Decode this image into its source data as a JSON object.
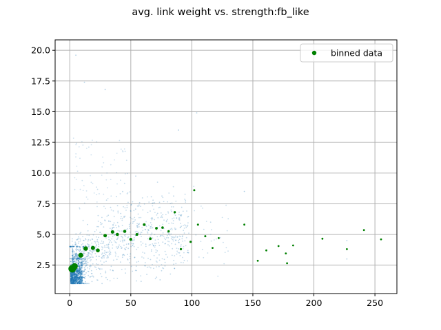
{
  "chart_data": {
    "type": "scatter",
    "title": "avg. link weight vs. strength:fb_like",
    "xlabel": "",
    "ylabel": "",
    "xlim": [
      -12,
      268
    ],
    "ylim": [
      0.18,
      20.85
    ],
    "x_ticks": [
      0,
      50,
      100,
      150,
      200,
      250
    ],
    "y_ticks": [
      2.5,
      5.0,
      7.5,
      10.0,
      12.5,
      15.0,
      17.5,
      20.0
    ],
    "x_tick_labels": [
      "0",
      "50",
      "100",
      "150",
      "200",
      "250"
    ],
    "y_tick_labels": [
      "2.5",
      "5.0",
      "7.5",
      "10.0",
      "12.5",
      "15.0",
      "17.5",
      "20.0"
    ],
    "grid": true,
    "legend": {
      "position": "top-right",
      "entries": [
        "binned data"
      ]
    },
    "colors": {
      "raw": "#1f77b4",
      "binned": "#008000",
      "grid": "#b0b0b0"
    },
    "series": [
      {
        "name": "binned data",
        "style": "markers",
        "points": [
          {
            "x": 2,
            "y": 2.2,
            "size": 5.5
          },
          {
            "x": 4,
            "y": 2.4,
            "size": 4.6
          },
          {
            "x": 9,
            "y": 3.3,
            "size": 3.6
          },
          {
            "x": 13,
            "y": 3.85,
            "size": 3.3
          },
          {
            "x": 19,
            "y": 3.9,
            "size": 3.0
          },
          {
            "x": 23,
            "y": 3.7,
            "size": 2.8
          },
          {
            "x": 29,
            "y": 4.9,
            "size": 2.5
          },
          {
            "x": 35,
            "y": 5.2,
            "size": 2.5
          },
          {
            "x": 39,
            "y": 5.0,
            "size": 2.3
          },
          {
            "x": 45,
            "y": 5.25,
            "size": 2.3
          },
          {
            "x": 50,
            "y": 4.6,
            "size": 2.1
          },
          {
            "x": 55,
            "y": 5.0,
            "size": 2.0
          },
          {
            "x": 61,
            "y": 5.8,
            "size": 2.0
          },
          {
            "x": 66,
            "y": 4.65,
            "size": 1.9
          },
          {
            "x": 71,
            "y": 5.5,
            "size": 1.9
          },
          {
            "x": 76,
            "y": 5.55,
            "size": 1.8
          },
          {
            "x": 81,
            "y": 5.25,
            "size": 1.7
          },
          {
            "x": 86,
            "y": 6.8,
            "size": 1.7
          },
          {
            "x": 91,
            "y": 3.8,
            "size": 1.6
          },
          {
            "x": 99,
            "y": 4.4,
            "size": 1.6
          },
          {
            "x": 102,
            "y": 8.6,
            "size": 1.5
          },
          {
            "x": 105,
            "y": 5.8,
            "size": 1.5
          },
          {
            "x": 111,
            "y": 4.85,
            "size": 1.5
          },
          {
            "x": 117,
            "y": 3.9,
            "size": 1.4
          },
          {
            "x": 122,
            "y": 4.7,
            "size": 1.4
          },
          {
            "x": 143,
            "y": 5.8,
            "size": 1.4
          },
          {
            "x": 154,
            "y": 2.85,
            "size": 1.4
          },
          {
            "x": 161,
            "y": 3.7,
            "size": 1.4
          },
          {
            "x": 171,
            "y": 4.05,
            "size": 1.4
          },
          {
            "x": 177,
            "y": 3.45,
            "size": 1.4
          },
          {
            "x": 178,
            "y": 2.65,
            "size": 1.4
          },
          {
            "x": 183,
            "y": 4.1,
            "size": 1.4
          },
          {
            "x": 207,
            "y": 4.65,
            "size": 1.4
          },
          {
            "x": 227,
            "y": 3.8,
            "size": 1.4
          },
          {
            "x": 241,
            "y": 5.35,
            "size": 1.4
          },
          {
            "x": 255,
            "y": 4.6,
            "size": 1.4
          }
        ]
      }
    ],
    "raw_data_note": "faint blue background scatter of individual node (strength, avg. link weight) values; not listed in legend",
    "raw_data_density": {
      "x_range": [
        0,
        130
      ],
      "y_range": [
        1.0,
        13.0
      ],
      "integer_strength_columns_x": [
        1,
        2,
        3,
        4,
        5,
        6,
        7,
        8,
        9,
        10
      ],
      "outliers": [
        {
          "x": 5,
          "y": 19.6
        },
        {
          "x": 12,
          "y": 17.4
        },
        {
          "x": 29,
          "y": 16.8
        },
        {
          "x": 104,
          "y": 14.9
        },
        {
          "x": 89,
          "y": 13.5
        },
        {
          "x": 143,
          "y": 8.5
        },
        {
          "x": 227,
          "y": 4.5
        },
        {
          "x": 227,
          "y": 3.0
        },
        {
          "x": 74,
          "y": 1.3
        }
      ]
    }
  }
}
